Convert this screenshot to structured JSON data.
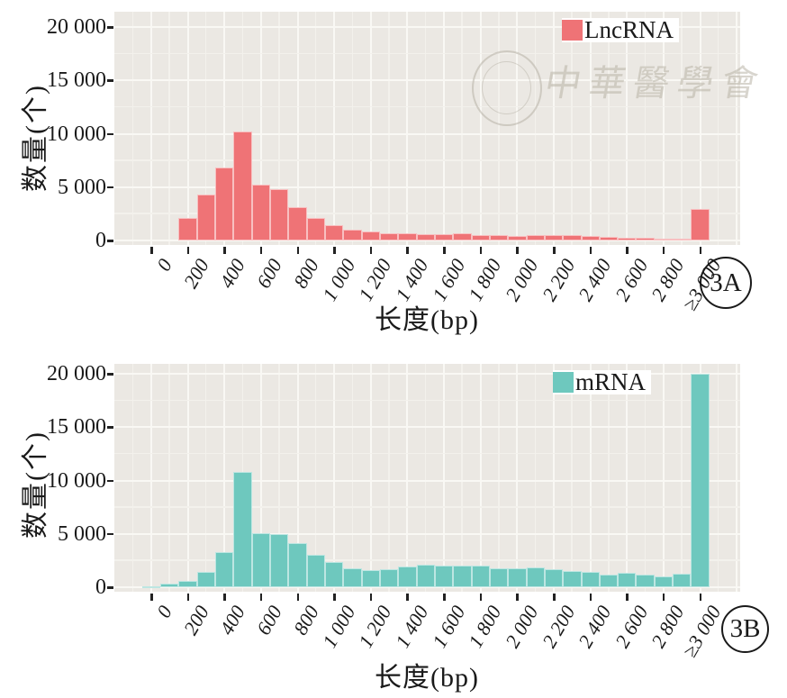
{
  "figure": {
    "watermark": {
      "seal": "society-seal-logo",
      "text": "中華醫學會"
    },
    "background": "#ffffff",
    "panel_background": "#EBE8E3"
  },
  "axes": {
    "y_label": "数量(个)",
    "x_label": "长度(bp)",
    "y_ticks": [
      {
        "value": 0,
        "label": "0"
      },
      {
        "value": 5000,
        "label": "5 000"
      },
      {
        "value": 10000,
        "label": "10 000"
      },
      {
        "value": 15000,
        "label": "15 000"
      },
      {
        "value": 20000,
        "label": "20 000"
      }
    ],
    "x_ticks": [
      {
        "value": 0,
        "label": "0"
      },
      {
        "value": 200,
        "label": "200"
      },
      {
        "value": 400,
        "label": "400"
      },
      {
        "value": 600,
        "label": "600"
      },
      {
        "value": 800,
        "label": "800"
      },
      {
        "value": 1000,
        "label": "1 000"
      },
      {
        "value": 1200,
        "label": "1 200"
      },
      {
        "value": 1400,
        "label": "1 400"
      },
      {
        "value": 1600,
        "label": "1 600"
      },
      {
        "value": 1800,
        "label": "1 800"
      },
      {
        "value": 2000,
        "label": "2 000"
      },
      {
        "value": 2200,
        "label": "2 200"
      },
      {
        "value": 2400,
        "label": "2 400"
      },
      {
        "value": 2600,
        "label": "2 600"
      },
      {
        "value": 2800,
        "label": "2 800"
      },
      {
        "value": 3000,
        "label": "≥3 000"
      }
    ]
  },
  "chart_data": [
    {
      "id": "3A",
      "type": "bar",
      "legend": "LncRNA",
      "panel_label": "3A",
      "color": "#EF7376",
      "xlabel": "长度(bp)",
      "ylabel": "数量(个)",
      "ylim": [
        0,
        20000
      ],
      "x_range_bp": [
        0,
        3000
      ],
      "binwidth_bp": 100,
      "legend_position": "top-right-inside",
      "grid": "on",
      "bins": [
        {
          "x": 200,
          "count": 2100
        },
        {
          "x": 300,
          "count": 4300
        },
        {
          "x": 400,
          "count": 6800
        },
        {
          "x": 500,
          "count": 10250
        },
        {
          "x": 600,
          "count": 5200
        },
        {
          "x": 700,
          "count": 4800
        },
        {
          "x": 800,
          "count": 3150
        },
        {
          "x": 900,
          "count": 2150
        },
        {
          "x": 1000,
          "count": 1450
        },
        {
          "x": 1100,
          "count": 1050
        },
        {
          "x": 1200,
          "count": 850
        },
        {
          "x": 1300,
          "count": 700
        },
        {
          "x": 1400,
          "count": 650
        },
        {
          "x": 1500,
          "count": 550
        },
        {
          "x": 1600,
          "count": 600
        },
        {
          "x": 1700,
          "count": 680
        },
        {
          "x": 1800,
          "count": 490
        },
        {
          "x": 1900,
          "count": 510
        },
        {
          "x": 2000,
          "count": 450
        },
        {
          "x": 2100,
          "count": 520
        },
        {
          "x": 2200,
          "count": 470
        },
        {
          "x": 2300,
          "count": 500
        },
        {
          "x": 2400,
          "count": 400
        },
        {
          "x": 2500,
          "count": 300
        },
        {
          "x": 2600,
          "count": 230
        },
        {
          "x": 2700,
          "count": 230
        },
        {
          "x": 2800,
          "count": 170
        },
        {
          "x": 2900,
          "count": 130
        },
        {
          "x": 3000,
          "count": 2950
        }
      ]
    },
    {
      "id": "3B",
      "type": "bar",
      "legend": "mRNA",
      "panel_label": "3B",
      "color": "#6EC8BE",
      "xlabel": "长度(bp)",
      "ylabel": "数量(个)",
      "ylim": [
        0,
        20000
      ],
      "x_range_bp": [
        0,
        3000
      ],
      "binwidth_bp": 100,
      "legend_position": "top-right-inside",
      "grid": "on",
      "bins": [
        {
          "x": 0,
          "count": 60
        },
        {
          "x": 100,
          "count": 300
        },
        {
          "x": 200,
          "count": 600
        },
        {
          "x": 300,
          "count": 1400
        },
        {
          "x": 400,
          "count": 3250
        },
        {
          "x": 500,
          "count": 10800
        },
        {
          "x": 600,
          "count": 5100
        },
        {
          "x": 700,
          "count": 4950
        },
        {
          "x": 800,
          "count": 4100
        },
        {
          "x": 900,
          "count": 3050
        },
        {
          "x": 1000,
          "count": 2350
        },
        {
          "x": 1100,
          "count": 1800
        },
        {
          "x": 1200,
          "count": 1620
        },
        {
          "x": 1300,
          "count": 1680
        },
        {
          "x": 1400,
          "count": 1900
        },
        {
          "x": 1500,
          "count": 2100
        },
        {
          "x": 1600,
          "count": 2050
        },
        {
          "x": 1700,
          "count": 2000
        },
        {
          "x": 1800,
          "count": 2050
        },
        {
          "x": 1900,
          "count": 1800
        },
        {
          "x": 2000,
          "count": 1800
        },
        {
          "x": 2100,
          "count": 1850
        },
        {
          "x": 2200,
          "count": 1700
        },
        {
          "x": 2300,
          "count": 1500
        },
        {
          "x": 2400,
          "count": 1400
        },
        {
          "x": 2500,
          "count": 1200
        },
        {
          "x": 2600,
          "count": 1350
        },
        {
          "x": 2700,
          "count": 1150
        },
        {
          "x": 2800,
          "count": 1000
        },
        {
          "x": 2900,
          "count": 1250
        },
        {
          "x": 3000,
          "count": 20000
        }
      ]
    }
  ]
}
